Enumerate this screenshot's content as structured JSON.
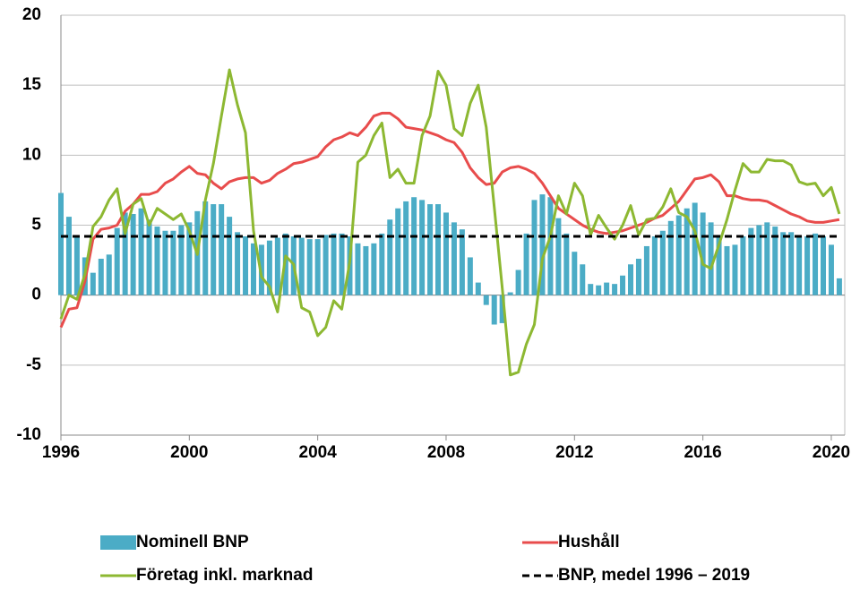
{
  "chart_data": {
    "type": "combo",
    "x": [
      1996,
      1996.25,
      1996.5,
      1996.75,
      1997,
      1997.25,
      1997.5,
      1997.75,
      1998,
      1998.25,
      1998.5,
      1998.75,
      1999,
      1999.25,
      1999.5,
      1999.75,
      2000,
      2000.25,
      2000.5,
      2000.75,
      2001,
      2001.25,
      2001.5,
      2001.75,
      2002,
      2002.25,
      2002.5,
      2002.75,
      2003,
      2003.25,
      2003.5,
      2003.75,
      2004,
      2004.25,
      2004.5,
      2004.75,
      2005,
      2005.25,
      2005.5,
      2005.75,
      2006,
      2006.25,
      2006.5,
      2006.75,
      2007,
      2007.25,
      2007.5,
      2007.75,
      2008,
      2008.25,
      2008.5,
      2008.75,
      2009,
      2009.25,
      2009.5,
      2009.75,
      2010,
      2010.25,
      2010.5,
      2010.75,
      2011,
      2011.25,
      2011.5,
      2011.75,
      2012,
      2012.25,
      2012.5,
      2012.75,
      2013,
      2013.25,
      2013.5,
      2013.75,
      2014,
      2014.25,
      2014.5,
      2014.75,
      2015,
      2015.25,
      2015.5,
      2015.75,
      2016,
      2016.25,
      2016.5,
      2016.75,
      2017,
      2017.25,
      2017.5,
      2017.75,
      2018,
      2018.25,
      2018.5,
      2018.75,
      2019,
      2019.25,
      2019.5,
      2019.75,
      2020,
      2020.25
    ],
    "series": [
      {
        "name": "Nominell BNP",
        "type": "bar",
        "color": "#4bacc6",
        "values": [
          7.3,
          5.6,
          4.2,
          2.7,
          1.6,
          2.6,
          2.9,
          4.8,
          5.9,
          5.8,
          6.2,
          5.4,
          4.9,
          4.6,
          4.6,
          5.0,
          5.2,
          6.0,
          6.7,
          6.5,
          6.5,
          5.6,
          4.5,
          4.2,
          3.7,
          3.6,
          3.9,
          4.1,
          4.4,
          4.2,
          4.1,
          4.0,
          4.0,
          4.3,
          4.4,
          4.4,
          4.2,
          3.7,
          3.5,
          3.7,
          4.4,
          5.4,
          6.2,
          6.7,
          7.0,
          6.8,
          6.5,
          6.5,
          5.9,
          5.2,
          4.7,
          2.7,
          0.9,
          -0.7,
          -2.1,
          -2.0,
          0.2,
          1.8,
          4.4,
          6.8,
          7.2,
          7.0,
          5.5,
          4.4,
          3.1,
          2.2,
          0.8,
          0.7,
          0.9,
          0.8,
          1.4,
          2.2,
          2.6,
          3.5,
          4.2,
          4.6,
          5.3,
          5.7,
          6.2,
          6.6,
          5.9,
          5.2,
          4.3,
          3.5,
          3.6,
          4.2,
          4.8,
          5.0,
          5.2,
          4.9,
          4.5,
          4.5,
          4.2,
          4.2,
          4.4,
          4.2,
          3.6,
          1.2
        ]
      },
      {
        "name": "Hushåll",
        "type": "line",
        "color": "#e84c4c",
        "values": [
          -2.3,
          -1.0,
          -0.9,
          1.0,
          4.0,
          4.7,
          4.8,
          5.0,
          6.0,
          6.5,
          7.2,
          7.2,
          7.4,
          8.0,
          8.3,
          8.8,
          9.2,
          8.7,
          8.6,
          8.0,
          7.6,
          8.1,
          8.3,
          8.4,
          8.4,
          8.0,
          8.2,
          8.7,
          9.0,
          9.4,
          9.5,
          9.7,
          9.9,
          10.6,
          11.1,
          11.3,
          11.6,
          11.4,
          12.0,
          12.8,
          13.0,
          13.0,
          12.6,
          12.0,
          11.9,
          11.8,
          11.6,
          11.4,
          11.1,
          10.9,
          10.2,
          9.1,
          8.4,
          7.9,
          8.0,
          8.8,
          9.1,
          9.2,
          9.0,
          8.7,
          8.0,
          7.1,
          6.2,
          5.8,
          5.4,
          5.0,
          4.7,
          4.5,
          4.4,
          4.5,
          4.6,
          4.8,
          5.0,
          5.2,
          5.5,
          5.7,
          6.2,
          6.7,
          7.5,
          8.3,
          8.4,
          8.6,
          8.1,
          7.1,
          7.1,
          6.9,
          6.8,
          6.8,
          6.7,
          6.4,
          6.1,
          5.8,
          5.6,
          5.3,
          5.2,
          5.2,
          5.3,
          5.4
        ]
      },
      {
        "name": "Företag inkl. marknad",
        "type": "line",
        "color": "#8db832",
        "values": [
          -1.7,
          0.0,
          -0.3,
          1.5,
          4.9,
          5.6,
          6.8,
          7.6,
          4.4,
          6.5,
          6.9,
          5.0,
          6.2,
          5.8,
          5.4,
          5.8,
          4.6,
          2.9,
          6.8,
          9.4,
          12.8,
          16.1,
          13.6,
          11.6,
          4.6,
          1.3,
          0.6,
          -1.2,
          2.8,
          2.2,
          -0.9,
          -1.2,
          -2.9,
          -2.3,
          -0.4,
          -1.0,
          2.4,
          9.5,
          10.0,
          11.4,
          12.3,
          8.4,
          9.0,
          8.0,
          8.0,
          11.4,
          12.8,
          16.0,
          15.0,
          11.9,
          11.4,
          13.7,
          15.0,
          12.0,
          6.3,
          0.5,
          -5.7,
          -5.5,
          -3.5,
          -2.1,
          2.6,
          4.2,
          7.1,
          5.8,
          8.0,
          7.1,
          4.3,
          5.7,
          4.8,
          4.0,
          5.0,
          6.4,
          4.3,
          5.4,
          5.5,
          6.3,
          7.6,
          5.9,
          5.6,
          4.6,
          2.2,
          1.9,
          3.6,
          5.4,
          7.5,
          9.4,
          8.8,
          8.8,
          9.7,
          9.6,
          9.6,
          9.3,
          8.1,
          7.9,
          8.0,
          7.1,
          7.7,
          5.8
        ]
      },
      {
        "name": "BNP, medel 1996 – 2019",
        "type": "hline",
        "color": "#000000",
        "value": 4.2
      }
    ],
    "xlim": [
      1996,
      2020.42
    ],
    "xticks": [
      1996,
      2000,
      2004,
      2008,
      2012,
      2016,
      2020
    ],
    "ylim": [
      -10,
      20
    ],
    "yticks": [
      -10,
      -5,
      0,
      5,
      10,
      15,
      20
    ],
    "grid": true,
    "legend": "bottom"
  }
}
